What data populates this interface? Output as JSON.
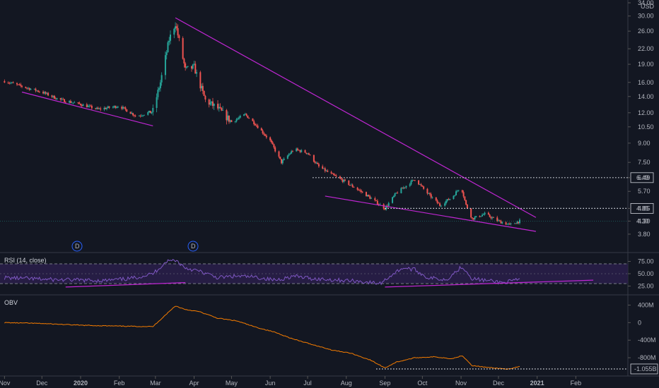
{
  "currency": "USD",
  "colors": {
    "background": "#131722",
    "up": "#26a69a",
    "down": "#ef5350",
    "trendline": "#c026d3",
    "rsi": "#7e57c2",
    "rsi_band": "#2a1f4a",
    "obv": "#f57c00",
    "grid": "#2a2e39",
    "axis_text": "#b2b5be"
  },
  "panes": {
    "price": {
      "label": ""
    },
    "rsi": {
      "label": "RSI (14, close)"
    },
    "obv": {
      "label": "OBV"
    }
  },
  "markers": [
    {
      "label": "D"
    },
    {
      "label": "D"
    }
  ],
  "chart_data": [
    {
      "type": "candlestick",
      "scale": "log",
      "y_ticks": [
        "3.80",
        "4.30",
        "4.85",
        "5.70",
        "6.49",
        "7.50",
        "9.00",
        "10.50",
        "12.00",
        "14.00",
        "16.00",
        "19.00",
        "22.00",
        "26.00",
        "30.00",
        "34.00"
      ],
      "x_ticks": [
        "Nov",
        "Dec",
        "2020",
        "Feb",
        "Mar",
        "Apr",
        "May",
        "Jun",
        "Jul",
        "Aug",
        "Sep",
        "Oct",
        "Nov",
        "Dec",
        "2021",
        "Feb"
      ],
      "price_labels": [
        "6.49",
        "4.85",
        "4.30"
      ],
      "levels": [
        6.49,
        4.85
      ],
      "current_price": 4.3,
      "trendlines": [
        {
          "from": [
            "2019-11-15",
            14.6
          ],
          "to": [
            "2020-02-28",
            10.6
          ]
        },
        {
          "from": [
            "2020-03-17",
            29.5
          ],
          "to": [
            "2020-12-31",
            4.45
          ]
        },
        {
          "from": [
            "2020-07-15",
            5.45
          ],
          "to": [
            "2020-12-31",
            3.9
          ]
        }
      ],
      "series_outline": [
        [
          "2019-11-01",
          16.2
        ],
        [
          "2019-11-15",
          15.4
        ],
        [
          "2019-12-01",
          14.6
        ],
        [
          "2019-12-15",
          13.6
        ],
        [
          "2020-01-01",
          13.0
        ],
        [
          "2020-01-15",
          12.4
        ],
        [
          "2020-02-01",
          12.8
        ],
        [
          "2020-02-15",
          11.6
        ],
        [
          "2020-02-28",
          12.2
        ],
        [
          "2020-03-05",
          16.0
        ],
        [
          "2020-03-12",
          24.0
        ],
        [
          "2020-03-17",
          28.0
        ],
        [
          "2020-03-25",
          18.0
        ],
        [
          "2020-04-01",
          18.5
        ],
        [
          "2020-04-10",
          13.5
        ],
        [
          "2020-04-20",
          12.5
        ],
        [
          "2020-05-01",
          11.0
        ],
        [
          "2020-05-12",
          11.8
        ],
        [
          "2020-05-20",
          10.8
        ],
        [
          "2020-06-01",
          9.2
        ],
        [
          "2020-06-10",
          7.5
        ],
        [
          "2020-06-20",
          8.5
        ],
        [
          "2020-07-01",
          8.2
        ],
        [
          "2020-07-10",
          7.2
        ],
        [
          "2020-07-20",
          6.7
        ],
        [
          "2020-08-01",
          6.2
        ],
        [
          "2020-08-15",
          5.6
        ],
        [
          "2020-09-01",
          4.85
        ],
        [
          "2020-09-10",
          5.6
        ],
        [
          "2020-09-25",
          6.4
        ],
        [
          "2020-10-05",
          5.6
        ],
        [
          "2020-10-15",
          5.0
        ],
        [
          "2020-10-25",
          5.4
        ],
        [
          "2020-11-01",
          6.0
        ],
        [
          "2020-11-05",
          5.0
        ],
        [
          "2020-11-10",
          4.4
        ],
        [
          "2020-11-20",
          4.6
        ],
        [
          "2020-12-01",
          4.3
        ],
        [
          "2020-12-10",
          4.15
        ],
        [
          "2020-12-18",
          4.3
        ]
      ]
    },
    {
      "type": "line",
      "name": "RSI (14, close)",
      "y_ticks": [
        "75.00",
        "50.00",
        "25.00"
      ],
      "bands": [
        70,
        30
      ],
      "trendlines": [
        {
          "from": [
            "2019-12-20",
            23
          ],
          "to": [
            "2020-03-25",
            32
          ]
        },
        {
          "from": [
            "2020-09-01",
            23
          ],
          "to": [
            "2021-02-15",
            37
          ]
        }
      ],
      "points": [
        [
          "2019-11-01",
          42
        ],
        [
          "2019-11-20",
          40
        ],
        [
          "2019-12-10",
          38
        ],
        [
          "2020-01-01",
          37
        ],
        [
          "2020-01-20",
          36
        ],
        [
          "2020-02-10",
          40
        ],
        [
          "2020-02-28",
          50
        ],
        [
          "2020-03-10",
          75
        ],
        [
          "2020-03-17",
          78
        ],
        [
          "2020-03-25",
          62
        ],
        [
          "2020-04-05",
          55
        ],
        [
          "2020-04-20",
          42
        ],
        [
          "2020-05-05",
          45
        ],
        [
          "2020-05-20",
          43
        ],
        [
          "2020-06-05",
          37
        ],
        [
          "2020-06-20",
          45
        ],
        [
          "2020-07-05",
          40
        ],
        [
          "2020-07-20",
          38
        ],
        [
          "2020-08-10",
          35
        ],
        [
          "2020-08-28",
          30
        ],
        [
          "2020-09-05",
          45
        ],
        [
          "2020-09-15",
          62
        ],
        [
          "2020-09-25",
          58
        ],
        [
          "2020-10-05",
          42
        ],
        [
          "2020-10-20",
          38
        ],
        [
          "2020-11-02",
          65
        ],
        [
          "2020-11-10",
          40
        ],
        [
          "2020-11-25",
          35
        ],
        [
          "2020-12-05",
          32
        ],
        [
          "2020-12-18",
          38
        ]
      ]
    },
    {
      "type": "line",
      "name": "OBV",
      "y_ticks": [
        "400M",
        "0",
        "-400M",
        "-800M"
      ],
      "price_label": "-1.055B",
      "level": -1055,
      "points": [
        [
          "2019-11-01",
          0
        ],
        [
          "2019-12-01",
          -20
        ],
        [
          "2020-01-01",
          -60
        ],
        [
          "2020-02-01",
          -80
        ],
        [
          "2020-02-28",
          -90
        ],
        [
          "2020-03-10",
          200
        ],
        [
          "2020-03-17",
          380
        ],
        [
          "2020-03-25",
          300
        ],
        [
          "2020-04-05",
          250
        ],
        [
          "2020-04-20",
          100
        ],
        [
          "2020-05-05",
          40
        ],
        [
          "2020-05-20",
          -100
        ],
        [
          "2020-06-05",
          -220
        ],
        [
          "2020-06-20",
          -380
        ],
        [
          "2020-07-05",
          -500
        ],
        [
          "2020-07-20",
          -620
        ],
        [
          "2020-08-05",
          -700
        ],
        [
          "2020-08-20",
          -850
        ],
        [
          "2020-09-01",
          -1030
        ],
        [
          "2020-09-10",
          -900
        ],
        [
          "2020-09-25",
          -800
        ],
        [
          "2020-10-10",
          -780
        ],
        [
          "2020-10-25",
          -820
        ],
        [
          "2020-11-02",
          -750
        ],
        [
          "2020-11-10",
          -980
        ],
        [
          "2020-11-25",
          -1030
        ],
        [
          "2020-12-10",
          -1060
        ],
        [
          "2020-12-18",
          -1000
        ]
      ]
    }
  ]
}
